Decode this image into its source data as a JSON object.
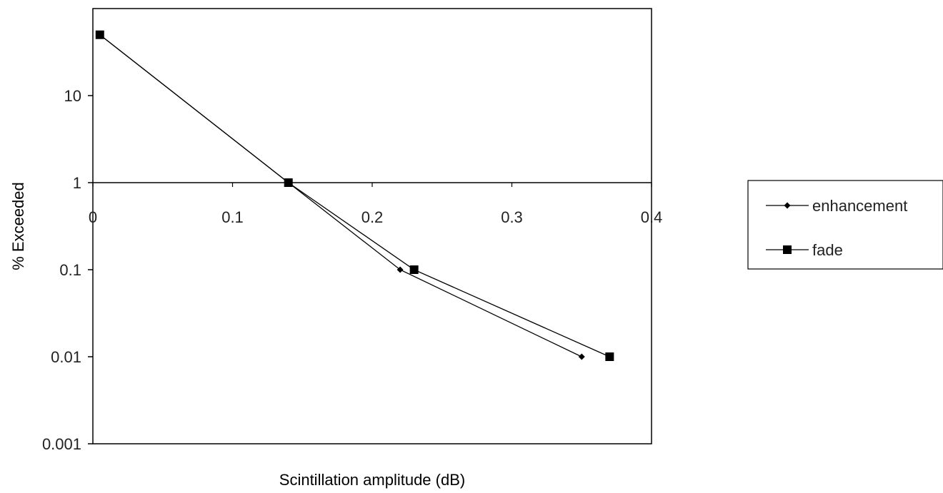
{
  "chart_data": {
    "type": "line",
    "title": "",
    "xlabel": "Scintillation amplitude (dB)",
    "ylabel": "% Exceeded",
    "x_scale": "linear",
    "y_scale": "log",
    "xlim": [
      0,
      0.4
    ],
    "ylim": [
      0.001,
      100
    ],
    "x_ticks": [
      {
        "value": 0,
        "label": "0"
      },
      {
        "value": 0.1,
        "label": "0.1"
      },
      {
        "value": 0.2,
        "label": "0.2"
      },
      {
        "value": 0.3,
        "label": "0.3"
      },
      {
        "value": 0.4,
        "label": "0.4"
      }
    ],
    "y_ticks": [
      {
        "value": 0.001,
        "label": "0.001"
      },
      {
        "value": 0.01,
        "label": "0.01"
      },
      {
        "value": 0.1,
        "label": "0.1"
      },
      {
        "value": 1,
        "label": "1"
      },
      {
        "value": 10,
        "label": "10"
      }
    ],
    "x_axis_crosses_y_at": 1,
    "grid": false,
    "legend_position": "right",
    "series": [
      {
        "name": "enhancement",
        "marker": "diamond",
        "color": "#000000",
        "points": [
          {
            "x": 0.005,
            "y": 50
          },
          {
            "x": 0.14,
            "y": 1
          },
          {
            "x": 0.22,
            "y": 0.1
          },
          {
            "x": 0.35,
            "y": 0.01
          }
        ]
      },
      {
        "name": "fade",
        "marker": "square",
        "color": "#000000",
        "points": [
          {
            "x": 0.005,
            "y": 50
          },
          {
            "x": 0.14,
            "y": 1
          },
          {
            "x": 0.23,
            "y": 0.1
          },
          {
            "x": 0.37,
            "y": 0.01
          }
        ]
      }
    ]
  }
}
